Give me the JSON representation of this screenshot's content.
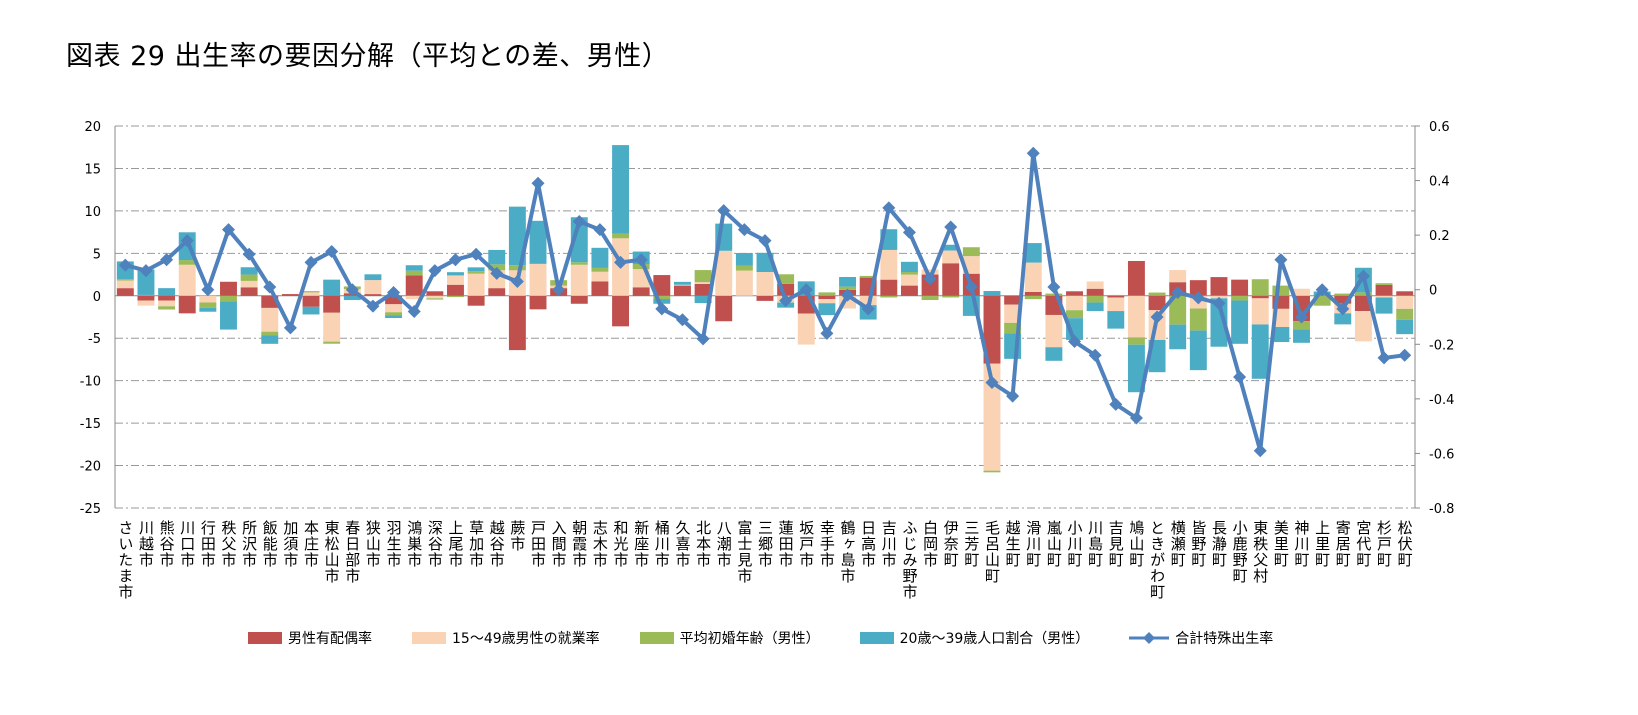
{
  "title": "図表 29 出生率の要因分解（平均との差、男性）",
  "chart_data": {
    "type": "bar",
    "stacked": true,
    "combo_line_series": "合計特殊出生率",
    "grid": true,
    "legend_position": "bottom",
    "ylim_left": [
      -25,
      20
    ],
    "yticks_left": [
      20,
      15,
      10,
      5,
      0,
      -5,
      -10,
      -15,
      -20,
      -25
    ],
    "ylim_right": [
      -0.8,
      0.6
    ],
    "yticks_right": [
      "0.6",
      "0.4",
      "0.2",
      "0",
      "-0.2",
      "-0.4",
      "-0.6",
      "-0.8"
    ],
    "categories": [
      "さいたま市",
      "川越市",
      "熊谷市",
      "川口市",
      "行田市",
      "秩父市",
      "所沢市",
      "飯能市",
      "加須市",
      "本庄市",
      "東松山市",
      "春日部市",
      "狭山市",
      "羽生市",
      "鴻巣市",
      "深谷市",
      "上尾市",
      "草加市",
      "越谷市",
      "蕨市",
      "戸田市",
      "入間市",
      "朝霞市",
      "志木市",
      "和光市",
      "新座市",
      "桶川市",
      "久喜市",
      "北本市",
      "八潮市",
      "富士見市",
      "三郷市",
      "蓮田市",
      "坂戸市",
      "幸手市",
      "鶴ヶ島市",
      "日高市",
      "吉川市",
      "ふじみ野市",
      "白岡市",
      "伊奈町",
      "三芳町",
      "毛呂山町",
      "越生町",
      "滑川町",
      "嵐山町",
      "小川町",
      "川島町",
      "吉見町",
      "鳩山町",
      "ときがわ町",
      "横瀬町",
      "皆野町",
      "長瀞町",
      "小鹿野町",
      "東秩父村",
      "美里町",
      "神川町",
      "上里町",
      "寄居町",
      "宮代町",
      "杉戸町",
      "松伏町"
    ],
    "series": [
      {
        "name": "男性有配偶率",
        "color": "#C0504D",
        "axis": "left",
        "values": [
          0.9,
          -0.56,
          -0.56,
          -2.07,
          0,
          1.65,
          1.0,
          -1.43,
          0.2,
          -1.3,
          -2.0,
          0.3,
          0.2,
          -1.0,
          2.4,
          0.53,
          1.3,
          -1.17,
          0.9,
          -6.4,
          -1.6,
          0.9,
          -0.94,
          1.7,
          -3.6,
          1.0,
          2.44,
          1.2,
          1.4,
          -3.0,
          0,
          -0.6,
          1.4,
          -2.1,
          -0.38,
          0.7,
          2.14,
          1.9,
          1.2,
          2.5,
          3.83,
          2.6,
          -8.0,
          -1.05,
          0.45,
          -2.26,
          0.53,
          0.83,
          -0.2,
          4.1,
          -1.7,
          1.6,
          1.84,
          2.2,
          1.9,
          -0.3,
          -1.54,
          -3.0,
          0,
          -0.94,
          -1.8,
          1.28,
          0.53
        ]
      },
      {
        "name": "15～49歳男性の就業率",
        "color": "#FAD3B5",
        "axis": "left",
        "values": [
          0.9,
          -0.6,
          -0.68,
          3.65,
          -0.79,
          0,
          0.75,
          -2.8,
          0,
          0.4,
          -3.4,
          0.5,
          1.65,
          -0.94,
          -0.4,
          -0.3,
          1.1,
          2.6,
          2.1,
          3.0,
          3.76,
          0.3,
          3.65,
          1.13,
          6.77,
          2.14,
          0,
          0.1,
          0.2,
          5.3,
          2.97,
          2.8,
          -0.8,
          -3.65,
          -0.5,
          -1.5,
          -1.1,
          3.5,
          1.3,
          0.6,
          1.5,
          2.07,
          -12.6,
          -2.14,
          3.46,
          -3.8,
          -1.7,
          0.86,
          -1.6,
          -4.9,
          -3.5,
          1.43,
          -1.5,
          -0.3,
          0,
          -3.08,
          -2.14,
          0.83,
          0,
          -1.13,
          -3.57,
          -0.2,
          -1.54
        ]
      },
      {
        "name": "平均初婚年齢（男性）",
        "color": "#9BBB59",
        "axis": "left",
        "values": [
          0.15,
          0.1,
          -0.38,
          0.56,
          -0.64,
          -0.68,
          0.75,
          -0.45,
          0,
          0.15,
          -0.25,
          0.3,
          0,
          -0.38,
          0.56,
          -0.15,
          -0.15,
          0.3,
          0.7,
          0.6,
          0,
          0.64,
          0.3,
          0.45,
          0.53,
          0.6,
          -0.38,
          0,
          1.43,
          0,
          0.6,
          0,
          1.13,
          0,
          0.4,
          0.38,
          0.2,
          -0.2,
          0.3,
          -0.5,
          -0.2,
          1.05,
          -0.2,
          -1.24,
          -0.4,
          0.26,
          -0.94,
          -0.8,
          0.1,
          -0.86,
          0.38,
          -3.4,
          -2.6,
          0,
          -0.56,
          1.95,
          1.2,
          -0.94,
          -1.17,
          0.26,
          0.4,
          0.2,
          -1.28
        ]
      },
      {
        "name": "20歳～39歳人口割合（男性）",
        "color": "#4BACC6",
        "axis": "left",
        "values": [
          2.1,
          3.0,
          0.9,
          3.27,
          -0.45,
          -3.3,
          0.86,
          -0.98,
          0,
          -0.9,
          1.9,
          -0.5,
          0.68,
          -0.3,
          0.64,
          0,
          0.38,
          0.45,
          1.7,
          6.9,
          5.07,
          0,
          5.3,
          2.37,
          10.45,
          1.47,
          -0.56,
          0.34,
          -0.86,
          3.2,
          1.47,
          2.26,
          -0.6,
          1.7,
          -1.4,
          1.13,
          -1.7,
          2.44,
          1.2,
          0,
          0.68,
          -2.37,
          0.56,
          -3.0,
          2.3,
          -1.6,
          -2.56,
          -1.0,
          -2.07,
          -5.6,
          -3.8,
          -2.9,
          -4.66,
          -5.7,
          -5.1,
          -6.4,
          -1.77,
          -1.6,
          0.5,
          -1.3,
          2.9,
          -1.9,
          -1.7
        ]
      },
      {
        "name": "合計特殊出生率",
        "color": "#4F81BD",
        "axis": "right",
        "type": "line",
        "values": [
          0.09,
          0.07,
          0.11,
          0.18,
          0.0,
          0.22,
          0.13,
          0.01,
          -0.14,
          0.1,
          0.14,
          0.0,
          -0.06,
          -0.01,
          -0.08,
          0.07,
          0.11,
          0.13,
          0.06,
          0.03,
          0.39,
          0.0,
          0.25,
          0.22,
          0.1,
          0.11,
          -0.07,
          -0.11,
          -0.18,
          0.29,
          0.22,
          0.18,
          -0.04,
          0.0,
          -0.16,
          -0.02,
          -0.07,
          0.3,
          0.21,
          0.04,
          0.23,
          0.01,
          -0.34,
          -0.39,
          0.5,
          0.01,
          -0.19,
          -0.24,
          -0.42,
          -0.47,
          -0.1,
          -0.01,
          -0.03,
          -0.05,
          -0.32,
          -0.59,
          0.11,
          -0.1,
          0.0,
          -0.07,
          0.05,
          -0.25,
          -0.24
        ]
      }
    ]
  }
}
